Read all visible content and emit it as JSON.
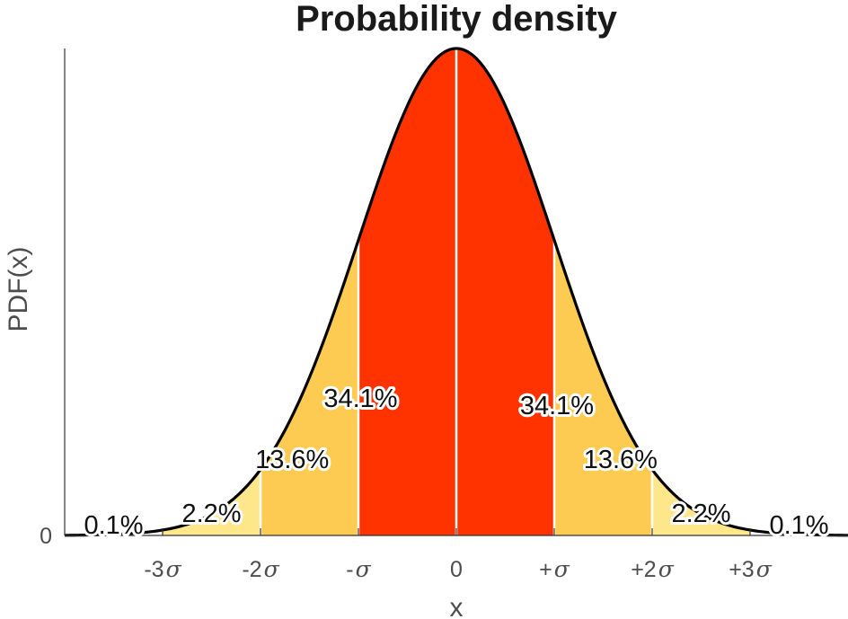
{
  "chart_data": {
    "type": "area",
    "title": "Probability density",
    "xlabel": "x",
    "ylabel": "PDF(x)",
    "distribution": "standard normal",
    "xlim": [
      -4,
      4
    ],
    "ylim": [
      0,
      0.3989
    ],
    "y_ticks": [
      {
        "value": 0,
        "label": "0"
      }
    ],
    "x_ticks": [
      {
        "value": -3,
        "label": "-3",
        "sigma": "σ"
      },
      {
        "value": -2,
        "label": "-2",
        "sigma": "σ"
      },
      {
        "value": -1,
        "label": "-",
        "sigma": "σ"
      },
      {
        "value": 0,
        "label": "0",
        "sigma": ""
      },
      {
        "value": 1,
        "label": "+",
        "sigma": "σ"
      },
      {
        "value": 2,
        "label": "+2",
        "sigma": "σ"
      },
      {
        "value": 3,
        "label": "+3",
        "sigma": "σ"
      }
    ],
    "regions": [
      {
        "from": -3,
        "to": -2,
        "color": "#fee68a"
      },
      {
        "from": -2,
        "to": -1,
        "color": "#fecb52"
      },
      {
        "from": -1,
        "to": 0,
        "color": "#ff3300"
      },
      {
        "from": 0,
        "to": 1,
        "color": "#ff3300"
      },
      {
        "from": 1,
        "to": 2,
        "color": "#fecb52"
      },
      {
        "from": 2,
        "to": 3,
        "color": "#fee68a"
      }
    ],
    "annotations": [
      {
        "text": "0.1%",
        "x": -3.5,
        "y": 0.0088,
        "anchor": "middle"
      },
      {
        "text": "2.2%",
        "x": -2.5,
        "y": 0.0184,
        "anchor": "middle"
      },
      {
        "text": "13.6%",
        "x": -1.3,
        "y": 0.0625,
        "anchor": "end"
      },
      {
        "text": "34.1%",
        "x": -0.6,
        "y": 0.1125,
        "anchor": "end"
      },
      {
        "text": "34.1%",
        "x": 0.65,
        "y": 0.1069,
        "anchor": "start"
      },
      {
        "text": "13.6%",
        "x": 1.3,
        "y": 0.0625,
        "anchor": "start"
      },
      {
        "text": "2.2%",
        "x": 2.5,
        "y": 0.0184,
        "anchor": "middle"
      },
      {
        "text": "0.1%",
        "x": 3.5,
        "y": 0.0088,
        "anchor": "middle"
      }
    ],
    "curve_color": "#000000",
    "divider_color": "#ffffff"
  }
}
